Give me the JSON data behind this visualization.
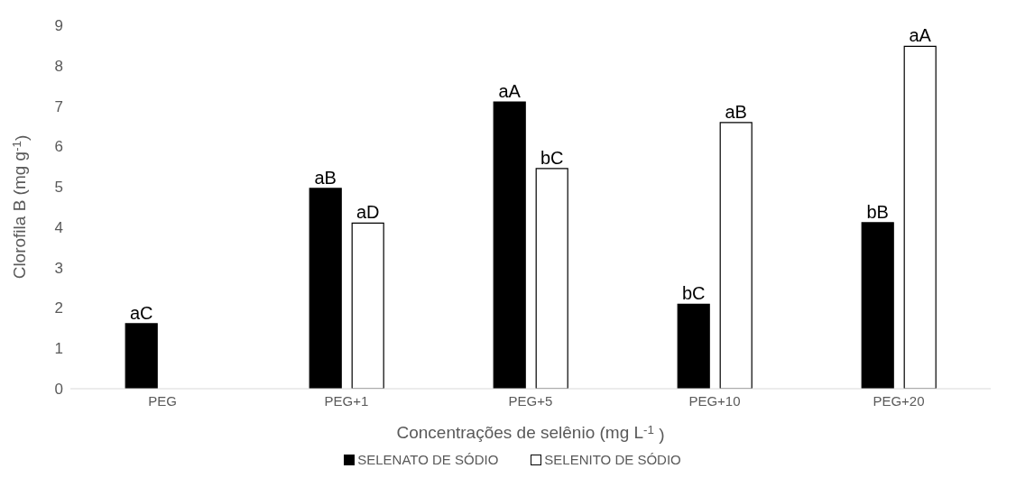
{
  "chart_data": {
    "type": "bar",
    "xlabel": "Concentrações de selênio (mg L$^{-1}$ )",
    "ylabel": "Clorofila B (mg g$^{-1}$)",
    "categories": [
      "PEG",
      "PEG+1",
      "PEG+5",
      "PEG+10",
      "PEG+20"
    ],
    "series": [
      {
        "name": "SELENATO DE SÓDIO",
        "color": "#000000",
        "values": [
          1.61,
          4.96,
          7.1,
          2.09,
          4.11
        ],
        "value_labels": [
          "aC",
          "aB",
          "aA",
          "bC",
          "bB"
        ]
      },
      {
        "name": "SELENITO DE SÓDIO",
        "color": "#ffffff",
        "values": [
          null,
          4.1,
          5.45,
          6.59,
          8.48
        ],
        "value_labels": [
          null,
          "aD",
          "bC",
          "aB",
          "aA"
        ]
      }
    ],
    "ylim": [
      0,
      9
    ],
    "yticks": [
      0,
      1,
      2,
      3,
      4,
      5,
      6,
      7,
      8,
      9
    ],
    "grid": false,
    "legend": "bottom"
  }
}
